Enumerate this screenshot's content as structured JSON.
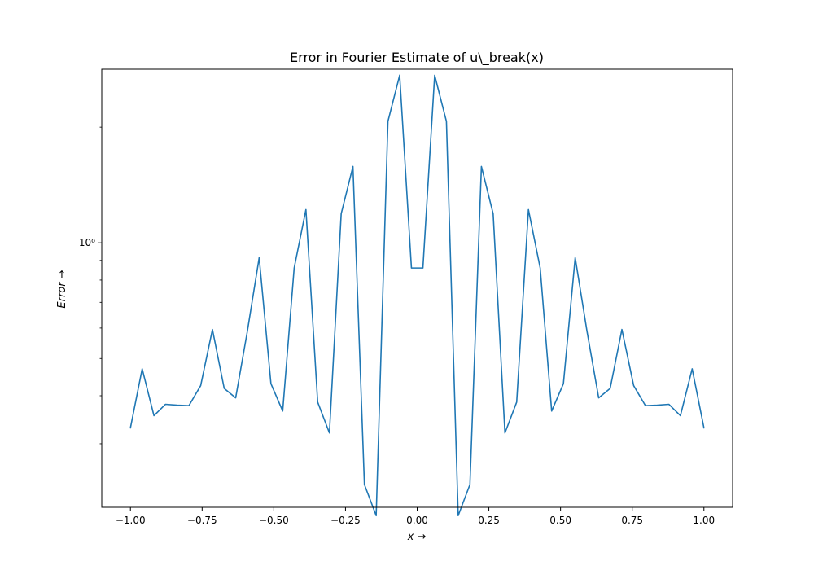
{
  "chart_data": {
    "type": "line",
    "title": "Error in Fourier Estimate of u\\_break(x)",
    "xlabel": "x →",
    "ylabel": "Error →",
    "xlim": [
      -1.1,
      1.1
    ],
    "ylim": [
      0.205,
      2.83
    ],
    "yscale": "log",
    "grid": false,
    "line_color": "#1f77b4",
    "x_ticks": [
      -1.0,
      -0.75,
      -0.5,
      -0.25,
      0.0,
      0.25,
      0.5,
      0.75,
      1.0
    ],
    "x_tick_labels": [
      "−1.00",
      "−0.75",
      "−0.50",
      "−0.25",
      "0.00",
      "0.25",
      "0.50",
      "0.75",
      "1.00"
    ],
    "y_major_ticks": [
      1.0
    ],
    "y_major_tick_labels": [
      "10⁰"
    ],
    "y_minor_ticks": [
      0.2,
      0.3,
      0.4,
      0.5,
      0.6,
      0.7,
      0.8,
      0.9,
      2.0
    ],
    "series": [
      {
        "x": [
          -1.0,
          -0.959,
          -0.918,
          -0.878,
          -0.837,
          -0.796,
          -0.755,
          -0.714,
          -0.673,
          -0.633,
          -0.592,
          -0.551,
          -0.51,
          -0.469,
          -0.429,
          -0.388,
          -0.347,
          -0.306,
          -0.265,
          -0.224,
          -0.184,
          -0.143,
          -0.102,
          -0.061,
          -0.02,
          0.02,
          0.061,
          0.102,
          0.143,
          0.184,
          0.224,
          0.265,
          0.306,
          0.347,
          0.388,
          0.429,
          0.469,
          0.51,
          0.551,
          0.592,
          0.633,
          0.673,
          0.714,
          0.755,
          0.796,
          0.837,
          0.878,
          0.918,
          0.959,
          1.0
        ],
        "y": [
          0.33,
          0.47,
          0.355,
          0.38,
          0.378,
          0.377,
          0.425,
          0.595,
          0.418,
          0.395,
          0.59,
          0.915,
          0.43,
          0.365,
          0.86,
          1.22,
          0.385,
          0.32,
          1.19,
          1.58,
          0.235,
          0.195,
          2.07,
          2.73,
          0.86,
          0.86,
          2.73,
          2.07,
          0.195,
          0.235,
          1.58,
          1.19,
          0.32,
          0.385,
          1.22,
          0.86,
          0.365,
          0.43,
          0.915,
          0.59,
          0.395,
          0.418,
          0.595,
          0.425,
          0.377,
          0.378,
          0.38,
          0.355,
          0.47,
          0.33
        ]
      }
    ]
  }
}
